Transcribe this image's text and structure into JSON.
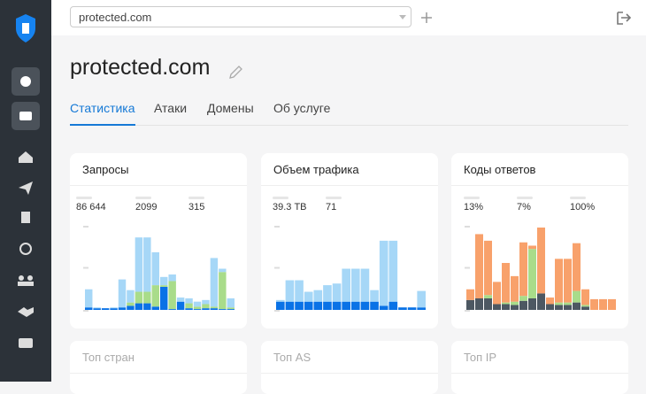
{
  "topbar": {
    "domain": "protected.com"
  },
  "header": {
    "title": "protected.com"
  },
  "tabs": [
    "Статистика",
    "Атаки",
    "Домены",
    "Об услуге"
  ],
  "cards": [
    {
      "title": "Запросы",
      "stats": [
        "86 644",
        "2099",
        "315"
      ],
      "chart": {
        "type": "bar",
        "stacked": true,
        "ylim": [
          0,
          100
        ],
        "series": [
          {
            "color": "#0a72e6",
            "values": [
              3,
              2,
              2,
              2,
              3,
              5,
              8,
              8,
              4,
              28,
              1,
              10,
              2,
              1,
              2,
              2,
              1,
              1
            ]
          },
          {
            "color": "#a9dc8a",
            "values": [
              0,
              0,
              0,
              0,
              0,
              4,
              14,
              14,
              26,
              2,
              34,
              0,
              6,
              3,
              5,
              2,
              45,
              2
            ]
          },
          {
            "color": "#a6d7f7",
            "values": [
              22,
              1,
              0,
              1,
              34,
              15,
              66,
              66,
              40,
              10,
              8,
              5,
              6,
              6,
              5,
              59,
              4,
              11
            ]
          }
        ]
      }
    },
    {
      "title": "Объем трафика",
      "stats": [
        "39.3 ТВ",
        "71"
      ],
      "chart": {
        "type": "bar",
        "stacked": true,
        "ylim": [
          0,
          100
        ],
        "series": [
          {
            "color": "#0a72e6",
            "values": [
              10,
              10,
              10,
              10,
              10,
              10,
              10,
              10,
              10,
              10,
              10,
              5,
              10,
              3,
              3,
              3
            ]
          },
          {
            "color": "#a6d7f7",
            "values": [
              2,
              26,
              26,
              12,
              14,
              20,
              22,
              40,
              40,
              40,
              14,
              79,
              74,
              0,
              0,
              20
            ]
          }
        ]
      }
    },
    {
      "title": "Коды ответов",
      "stats": [
        "13%",
        "7%",
        "100%"
      ],
      "chart": {
        "type": "bar",
        "stacked": true,
        "ylim": [
          0,
          100
        ],
        "series": [
          {
            "color": "#4d5862",
            "values": [
              12,
              14,
              14,
              7,
              7,
              6,
              11,
              14,
              20,
              7,
              6,
              6,
              9,
              4,
              0,
              0,
              0
            ]
          },
          {
            "color": "#a9dc8a",
            "values": [
              0,
              0,
              4,
              0,
              2,
              4,
              6,
              60,
              0,
              0,
              3,
              3,
              14,
              2,
              0,
              0,
              0
            ]
          },
          {
            "color": "#f8a16b",
            "values": [
              13,
              78,
              66,
              27,
              48,
              31,
              65,
              4,
              80,
              8,
              53,
              53,
              58,
              19,
              13,
              13,
              13
            ]
          }
        ]
      }
    }
  ],
  "bottom_cards": [
    "Топ стран",
    "Топ AS",
    "Топ IP"
  ]
}
